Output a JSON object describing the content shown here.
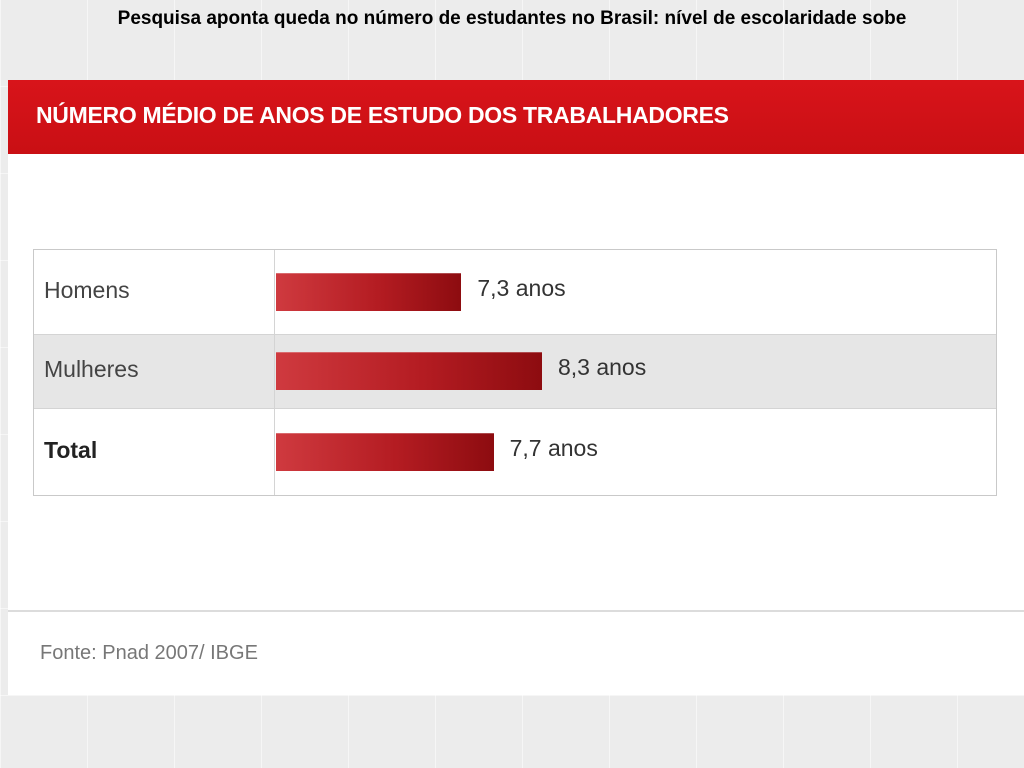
{
  "slide": {
    "title": "Pesquisa aponta queda no número de estudantes no Brasil: nível de escolaridade sobe"
  },
  "colors": {
    "header_red": "#d8141a",
    "bar_red_light": "#cf3a3f",
    "bar_red_dark": "#8d0c10",
    "alt_row_gray": "#e6e6e6"
  },
  "chart_data": {
    "type": "bar",
    "orientation": "horizontal",
    "title": "NÚMERO MÉDIO DE ANOS DE ESTUDO DOS TRABALHADORES",
    "categories": [
      "Homens",
      "Mulheres",
      "Total"
    ],
    "values": [
      7.3,
      8.3,
      7.7
    ],
    "value_labels": [
      "7,3 anos",
      "8,3 anos",
      "7,7 anos"
    ],
    "unit": "anos",
    "grid": false,
    "source": "Fonte: Pnad 2007/ IBGE"
  }
}
